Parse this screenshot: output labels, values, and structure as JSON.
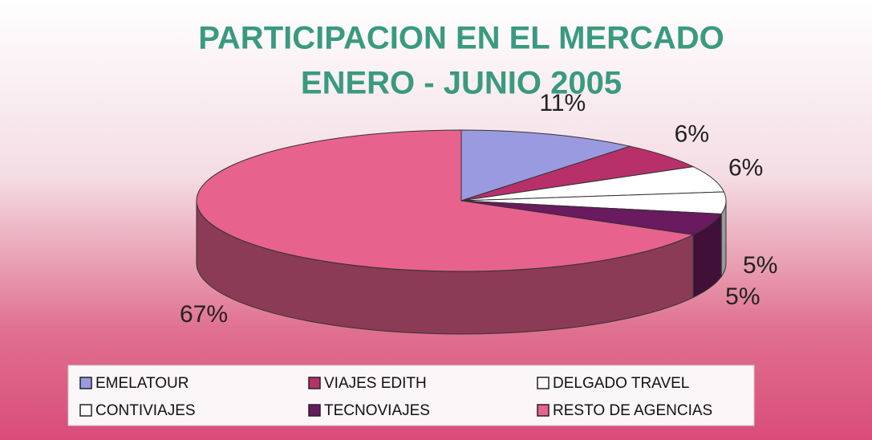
{
  "chart_data": {
    "type": "pie",
    "title": "PARTICIPACION EN EL MERCADO",
    "subtitle": "ENERO - JUNIO 2005",
    "categories": [
      "EMELATOUR",
      "VIAJES EDITH",
      "DELGADO TRAVEL",
      "CONTIVIAJES",
      "TECNOVIAJES",
      "RESTO DE AGENCIAS"
    ],
    "values": [
      11,
      6,
      6,
      5,
      5,
      67
    ],
    "value_labels": [
      "11%",
      "6%",
      "6%",
      "5%",
      "5%",
      "67%"
    ],
    "colors": [
      "#9a9ae0",
      "#b8306a",
      "#ffffff",
      "#ffffff",
      "#6a1a5e",
      "#e8628e"
    ],
    "legend": "bottom"
  }
}
